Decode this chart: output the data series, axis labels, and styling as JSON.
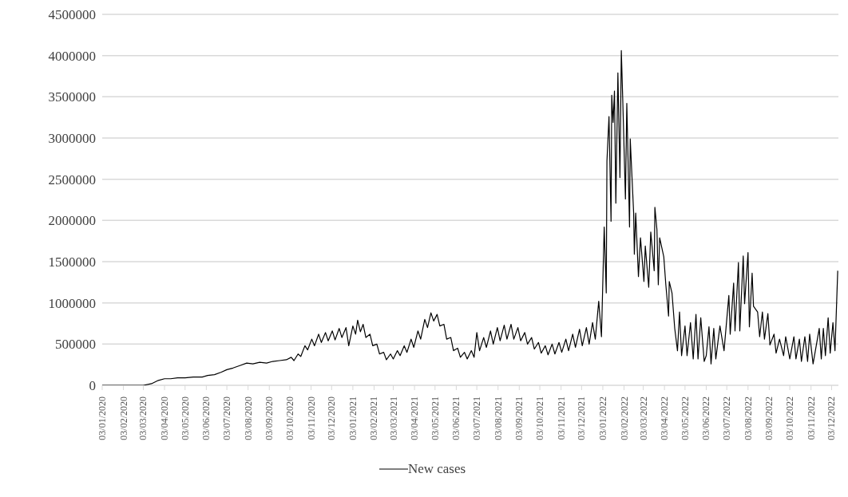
{
  "chart_data": {
    "type": "line",
    "legend": "bottom",
    "grid": "y",
    "ylim": [
      0,
      4500000
    ],
    "yticks": [
      0,
      500000,
      1000000,
      1500000,
      2000000,
      2500000,
      3000000,
      3500000,
      4000000,
      4500000
    ],
    "xlim": [
      "2020-01-03",
      "2022-12-13"
    ],
    "xticks": [
      {
        "value": "2020-01-03",
        "label": "03/01/2020"
      },
      {
        "value": "2020-02-03",
        "label": "03/02/2020"
      },
      {
        "value": "2020-03-03",
        "label": "03/03/2020"
      },
      {
        "value": "2020-04-03",
        "label": "03/04/2020"
      },
      {
        "value": "2020-05-03",
        "label": "03/05/2020"
      },
      {
        "value": "2020-06-03",
        "label": "03/06/2020"
      },
      {
        "value": "2020-07-03",
        "label": "03/07/2020"
      },
      {
        "value": "2020-08-03",
        "label": "03/08/2020"
      },
      {
        "value": "2020-09-03",
        "label": "03/09/2020"
      },
      {
        "value": "2020-10-03",
        "label": "03/10/2020"
      },
      {
        "value": "2020-11-03",
        "label": "03/11/2020"
      },
      {
        "value": "2020-12-03",
        "label": "03/12/2020"
      },
      {
        "value": "2021-01-03",
        "label": "03/01/2021"
      },
      {
        "value": "2021-02-03",
        "label": "03/02/2021"
      },
      {
        "value": "2021-03-03",
        "label": "03/03/2021"
      },
      {
        "value": "2021-04-03",
        "label": "03/04/2021"
      },
      {
        "value": "2021-05-03",
        "label": "03/05/2021"
      },
      {
        "value": "2021-06-03",
        "label": "03/06/2021"
      },
      {
        "value": "2021-07-03",
        "label": "03/07/2021"
      },
      {
        "value": "2021-08-03",
        "label": "03/08/2021"
      },
      {
        "value": "2021-09-03",
        "label": "03/09/2021"
      },
      {
        "value": "2021-10-03",
        "label": "03/10/2021"
      },
      {
        "value": "2021-11-03",
        "label": "03/11/2021"
      },
      {
        "value": "2021-12-03",
        "label": "03/12/2021"
      },
      {
        "value": "2022-01-03",
        "label": "03/01/2022"
      },
      {
        "value": "2022-02-03",
        "label": "03/02/2022"
      },
      {
        "value": "2022-03-03",
        "label": "03/03/2022"
      },
      {
        "value": "2022-04-03",
        "label": "03/04/2022"
      },
      {
        "value": "2022-05-03",
        "label": "03/05/2022"
      },
      {
        "value": "2022-06-03",
        "label": "03/06/2022"
      },
      {
        "value": "2022-07-03",
        "label": "03/07/2022"
      },
      {
        "value": "2022-08-03",
        "label": "03/08/2022"
      },
      {
        "value": "2022-09-03",
        "label": "03/09/2022"
      },
      {
        "value": "2022-10-03",
        "label": "03/10/2022"
      },
      {
        "value": "2022-11-03",
        "label": "03/11/2022"
      },
      {
        "value": "2022-12-03",
        "label": "03/12/2022"
      }
    ],
    "x": [
      "2020-01-03",
      "2020-02-03",
      "2020-03-03",
      "2020-03-15",
      "2020-03-25",
      "2020-04-03",
      "2020-04-12",
      "2020-04-22",
      "2020-05-03",
      "2020-05-15",
      "2020-05-28",
      "2020-06-05",
      "2020-06-15",
      "2020-06-25",
      "2020-07-03",
      "2020-07-12",
      "2020-07-22",
      "2020-08-01",
      "2020-08-10",
      "2020-08-20",
      "2020-08-30",
      "2020-09-08",
      "2020-09-18",
      "2020-09-28",
      "2020-10-05",
      "2020-10-09",
      "2020-10-15",
      "2020-10-19",
      "2020-10-25",
      "2020-10-29",
      "2020-11-04",
      "2020-11-08",
      "2020-11-14",
      "2020-11-18",
      "2020-11-24",
      "2020-11-28",
      "2020-12-04",
      "2020-12-08",
      "2020-12-14",
      "2020-12-18",
      "2020-12-24",
      "2020-12-28",
      "2021-01-03",
      "2021-01-07",
      "2021-01-10",
      "2021-01-14",
      "2021-01-18",
      "2021-01-22",
      "2021-01-28",
      "2021-02-01",
      "2021-02-07",
      "2021-02-11",
      "2021-02-17",
      "2021-02-21",
      "2021-02-27",
      "2021-03-03",
      "2021-03-09",
      "2021-03-13",
      "2021-03-19",
      "2021-03-23",
      "2021-03-29",
      "2021-04-02",
      "2021-04-08",
      "2021-04-12",
      "2021-04-18",
      "2021-04-22",
      "2021-04-27",
      "2021-05-01",
      "2021-05-06",
      "2021-05-10",
      "2021-05-16",
      "2021-05-20",
      "2021-05-26",
      "2021-05-30",
      "2021-06-05",
      "2021-06-09",
      "2021-06-15",
      "2021-06-19",
      "2021-06-25",
      "2021-06-29",
      "2021-07-03",
      "2021-07-07",
      "2021-07-13",
      "2021-07-17",
      "2021-07-23",
      "2021-07-27",
      "2021-08-02",
      "2021-08-06",
      "2021-08-12",
      "2021-08-16",
      "2021-08-22",
      "2021-08-26",
      "2021-09-01",
      "2021-09-05",
      "2021-09-11",
      "2021-09-15",
      "2021-09-21",
      "2021-09-25",
      "2021-10-01",
      "2021-10-05",
      "2021-10-11",
      "2021-10-15",
      "2021-10-21",
      "2021-10-25",
      "2021-10-31",
      "2021-11-04",
      "2021-11-10",
      "2021-11-14",
      "2021-11-20",
      "2021-11-24",
      "2021-11-30",
      "2021-12-04",
      "2021-12-10",
      "2021-12-14",
      "2021-12-19",
      "2021-12-23",
      "2021-12-28",
      "2022-01-01",
      "2022-01-05",
      "2022-01-08",
      "2022-01-09",
      "2022-01-12",
      "2022-01-15",
      "2022-01-16",
      "2022-01-18",
      "2022-01-20",
      "2022-01-22",
      "2022-01-25",
      "2022-01-28",
      "2022-01-30",
      "2022-02-01",
      "2022-02-05",
      "2022-02-07",
      "2022-02-11",
      "2022-02-12",
      "2022-02-17",
      "2022-02-18",
      "2022-02-20",
      "2022-02-24",
      "2022-02-27",
      "2022-03-04",
      "2022-03-06",
      "2022-03-11",
      "2022-03-14",
      "2022-03-19",
      "2022-03-20",
      "2022-03-23",
      "2022-03-25",
      "2022-03-27",
      "2022-04-02",
      "2022-04-05",
      "2022-04-09",
      "2022-04-10",
      "2022-04-14",
      "2022-04-18",
      "2022-04-22",
      "2022-04-25",
      "2022-04-28",
      "2022-05-03",
      "2022-05-06",
      "2022-05-11",
      "2022-05-15",
      "2022-05-19",
      "2022-05-22",
      "2022-05-26",
      "2022-05-31",
      "2022-06-03",
      "2022-06-07",
      "2022-06-10",
      "2022-06-14",
      "2022-06-17",
      "2022-06-23",
      "2022-06-29",
      "2022-07-06",
      "2022-07-08",
      "2022-07-13",
      "2022-07-15",
      "2022-07-20",
      "2022-07-22",
      "2022-07-27",
      "2022-07-29",
      "2022-08-03",
      "2022-08-05",
      "2022-08-09",
      "2022-08-11",
      "2022-08-17",
      "2022-08-20",
      "2022-08-24",
      "2022-08-27",
      "2022-09-01",
      "2022-09-04",
      "2022-09-10",
      "2022-09-13",
      "2022-09-18",
      "2022-09-24",
      "2022-09-27",
      "2022-10-03",
      "2022-10-09",
      "2022-10-12",
      "2022-10-17",
      "2022-10-20",
      "2022-10-25",
      "2022-10-29",
      "2022-11-01",
      "2022-11-06",
      "2022-11-15",
      "2022-11-18",
      "2022-11-21",
      "2022-11-24",
      "2022-11-28",
      "2022-12-01",
      "2022-12-05",
      "2022-12-08",
      "2022-12-12"
    ],
    "series": [
      {
        "name": "New cases",
        "color": "#000000",
        "values": [
          0,
          0,
          0,
          20000,
          60000,
          80000,
          80000,
          90000,
          90000,
          100000,
          100000,
          120000,
          130000,
          160000,
          190000,
          210000,
          240000,
          270000,
          260000,
          280000,
          270000,
          290000,
          300000,
          310000,
          340000,
          300000,
          380000,
          350000,
          480000,
          430000,
          560000,
          480000,
          620000,
          520000,
          640000,
          540000,
          660000,
          550000,
          690000,
          580000,
          700000,
          480000,
          720000,
          620000,
          790000,
          650000,
          740000,
          580000,
          620000,
          480000,
          500000,
          380000,
          400000,
          310000,
          380000,
          320000,
          420000,
          360000,
          480000,
          400000,
          560000,
          460000,
          660000,
          560000,
          800000,
          700000,
          880000,
          780000,
          860000,
          720000,
          740000,
          560000,
          580000,
          420000,
          450000,
          340000,
          400000,
          320000,
          420000,
          340000,
          640000,
          420000,
          580000,
          460000,
          660000,
          500000,
          700000,
          540000,
          730000,
          560000,
          740000,
          560000,
          700000,
          540000,
          640000,
          500000,
          580000,
          440000,
          520000,
          390000,
          480000,
          370000,
          500000,
          380000,
          520000,
          400000,
          560000,
          420000,
          620000,
          460000,
          680000,
          480000,
          700000,
          500000,
          760000,
          560000,
          1020000,
          590000,
          1920000,
          1120000,
          2720000,
          3260000,
          1990000,
          3520000,
          3190000,
          3570000,
          2210000,
          3790000,
          2520000,
          4060000,
          3490000,
          2260000,
          3420000,
          1920000,
          2990000,
          2090000,
          1590000,
          2090000,
          1320000,
          1790000,
          1260000,
          1690000,
          1190000,
          1860000,
          1390000,
          2160000,
          1890000,
          1220000,
          1790000,
          1560000,
          1220000,
          840000,
          1260000,
          1120000,
          690000,
          420000,
          890000,
          360000,
          720000,
          360000,
          760000,
          320000,
          860000,
          320000,
          820000,
          290000,
          360000,
          710000,
          260000,
          690000,
          320000,
          720000,
          420000,
          1090000,
          620000,
          1240000,
          660000,
          1490000,
          660000,
          1570000,
          990000,
          1610000,
          710000,
          1360000,
          960000,
          890000,
          590000,
          890000,
          560000,
          870000,
          490000,
          620000,
          390000,
          560000,
          360000,
          590000,
          320000,
          590000,
          320000,
          560000,
          290000,
          590000,
          290000,
          620000,
          260000,
          690000,
          320000,
          690000,
          360000,
          820000,
          390000,
          760000,
          420000,
          1390000
        ]
      }
    ]
  }
}
